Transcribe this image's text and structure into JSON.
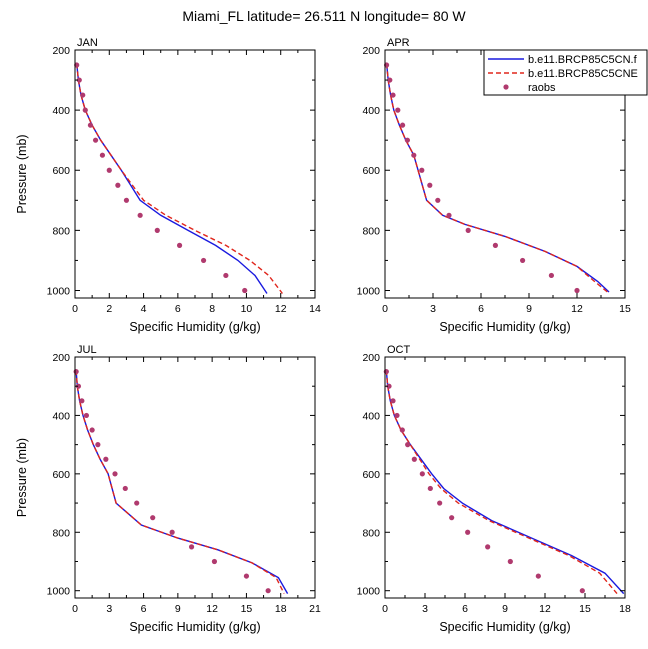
{
  "figure": {
    "title": "Miami_FL  latitude= 26.511 N longitude= 80 W"
  },
  "colors": {
    "series1": "#1a1adf",
    "series2": "#e0261c",
    "obs": "#b03a6e"
  },
  "chart_data": [
    {
      "type": "line",
      "panel": "JAN",
      "xlabel": "Specific Humidity (g/kg)",
      "ylabel": "Pressure (mb)",
      "xlim": [
        0,
        14
      ],
      "xticks": [
        0,
        2,
        4,
        6,
        8,
        10,
        12,
        14
      ],
      "ylim": [
        200,
        1025
      ],
      "yticks": [
        200,
        400,
        600,
        800,
        1000
      ],
      "y_inverted": true,
      "legend": "top-right",
      "series": [
        {
          "name": "b.e11.BRCP85C5CN.f",
          "style": "solid",
          "x": [
            0.1,
            0.2,
            0.35,
            0.6,
            1.0,
            1.5,
            2.1,
            2.7,
            3.8,
            5.0,
            6.6,
            8.2,
            9.5,
            10.5,
            11.2
          ],
          "y": [
            245,
            300,
            350,
            400,
            450,
            500,
            550,
            600,
            700,
            750,
            800,
            850,
            900,
            950,
            1010
          ]
        },
        {
          "name": "b.e11.BRCP85C5CNE",
          "style": "dashed",
          "x": [
            0.1,
            0.2,
            0.35,
            0.6,
            1.0,
            1.5,
            2.1,
            2.7,
            4.0,
            5.3,
            7.0,
            8.8,
            10.2,
            11.3,
            12.1
          ],
          "y": [
            245,
            300,
            350,
            400,
            450,
            500,
            550,
            600,
            700,
            750,
            800,
            850,
            900,
            950,
            1010
          ]
        },
        {
          "name": "raobs",
          "style": "points",
          "x": [
            0.1,
            0.25,
            0.45,
            0.6,
            0.9,
            1.2,
            1.6,
            2.0,
            2.5,
            3.0,
            3.8,
            4.8,
            6.1,
            7.5,
            8.8,
            9.9
          ],
          "y": [
            250,
            300,
            350,
            400,
            450,
            500,
            550,
            600,
            650,
            700,
            750,
            800,
            850,
            900,
            950,
            1000
          ]
        }
      ]
    },
    {
      "type": "line",
      "panel": "APR",
      "xlabel": "Specific Humidity (g/kg)",
      "ylabel": "Pressure (mb)",
      "xlim": [
        0,
        15
      ],
      "xticks": [
        0,
        3,
        6,
        9,
        12,
        15
      ],
      "ylim": [
        200,
        1025
      ],
      "yticks": [
        200,
        400,
        600,
        800,
        1000
      ],
      "y_inverted": true,
      "legend": "top-right",
      "series": [
        {
          "name": "b.e11.BRCP85C5CN.f",
          "style": "solid",
          "x": [
            0.1,
            0.2,
            0.35,
            0.55,
            0.9,
            1.3,
            1.8,
            2.6,
            3.6,
            5.0,
            7.5,
            10.0,
            12.0,
            13.3,
            14.0
          ],
          "y": [
            245,
            300,
            350,
            400,
            450,
            500,
            550,
            700,
            750,
            780,
            820,
            870,
            920,
            970,
            1005
          ]
        },
        {
          "name": "b.e11.BRCP85C5CNE",
          "style": "dashed",
          "x": [
            0.1,
            0.2,
            0.35,
            0.55,
            0.9,
            1.3,
            1.8,
            2.6,
            3.6,
            5.0,
            7.5,
            10.0,
            12.0,
            13.1,
            13.9
          ],
          "y": [
            245,
            300,
            350,
            400,
            450,
            500,
            550,
            700,
            750,
            780,
            820,
            870,
            920,
            970,
            1005
          ]
        },
        {
          "name": "raobs",
          "style": "points",
          "x": [
            0.1,
            0.3,
            0.5,
            0.8,
            1.1,
            1.4,
            1.8,
            2.3,
            2.8,
            3.3,
            4.0,
            5.2,
            6.9,
            8.6,
            10.4,
            12.0
          ],
          "y": [
            250,
            300,
            350,
            400,
            450,
            500,
            550,
            600,
            650,
            700,
            750,
            800,
            850,
            900,
            950,
            1000
          ]
        }
      ]
    },
    {
      "type": "line",
      "panel": "JUL",
      "xlabel": "Specific Humidity (g/kg)",
      "ylabel": "Pressure (mb)",
      "xlim": [
        0,
        21
      ],
      "xticks": [
        0,
        3,
        6,
        9,
        12,
        15,
        18,
        21
      ],
      "ylim": [
        200,
        1025
      ],
      "yticks": [
        200,
        400,
        600,
        800,
        1000
      ],
      "y_inverted": true,
      "legend": "none",
      "series": [
        {
          "name": "b.e11.BRCP85C5CN.f",
          "style": "solid",
          "x": [
            0.1,
            0.2,
            0.4,
            0.7,
            1.1,
            1.6,
            2.2,
            2.9,
            3.6,
            5.8,
            9.0,
            12.5,
            15.5,
            17.8,
            18.6
          ],
          "y": [
            245,
            300,
            350,
            400,
            450,
            500,
            550,
            600,
            700,
            775,
            820,
            860,
            905,
            955,
            1010
          ]
        },
        {
          "name": "b.e11.BRCP85C5CNE",
          "style": "dashed",
          "x": [
            0.1,
            0.2,
            0.4,
            0.7,
            1.1,
            1.6,
            2.2,
            2.9,
            3.6,
            5.8,
            9.0,
            12.5,
            15.5,
            17.6,
            18.3
          ],
          "y": [
            245,
            300,
            350,
            400,
            450,
            500,
            550,
            600,
            700,
            775,
            820,
            860,
            905,
            955,
            1010
          ]
        },
        {
          "name": "raobs",
          "style": "points",
          "x": [
            0.1,
            0.3,
            0.6,
            1.0,
            1.5,
            2.0,
            2.7,
            3.5,
            4.4,
            5.4,
            6.8,
            8.5,
            10.2,
            12.2,
            15.0,
            16.9
          ],
          "y": [
            250,
            300,
            350,
            400,
            450,
            500,
            550,
            600,
            650,
            700,
            750,
            800,
            850,
            900,
            950,
            1000
          ]
        }
      ]
    },
    {
      "type": "line",
      "panel": "OCT",
      "xlabel": "Specific Humidity (g/kg)",
      "ylabel": "Pressure (mb)",
      "xlim": [
        0,
        18
      ],
      "xticks": [
        0,
        3,
        6,
        9,
        12,
        15,
        18
      ],
      "ylim": [
        200,
        1025
      ],
      "yticks": [
        200,
        400,
        600,
        800,
        1000
      ],
      "y_inverted": true,
      "legend": "none",
      "series": [
        {
          "name": "b.e11.BRCP85C5CN.f",
          "style": "solid",
          "x": [
            0.1,
            0.2,
            0.4,
            0.7,
            1.2,
            1.9,
            2.7,
            3.5,
            4.4,
            5.8,
            8.0,
            11.0,
            14.0,
            16.5,
            17.9
          ],
          "y": [
            245,
            300,
            350,
            400,
            450,
            500,
            550,
            600,
            650,
            700,
            760,
            820,
            880,
            940,
            1010
          ]
        },
        {
          "name": "b.e11.BRCP85C5CNE",
          "style": "dashed",
          "x": [
            0.1,
            0.2,
            0.4,
            0.7,
            1.2,
            1.9,
            2.6,
            3.3,
            4.2,
            5.5,
            7.8,
            10.8,
            13.8,
            16.1,
            17.4
          ],
          "y": [
            245,
            300,
            350,
            400,
            450,
            500,
            550,
            600,
            650,
            700,
            760,
            820,
            880,
            940,
            1010
          ]
        },
        {
          "name": "raobs",
          "style": "points",
          "x": [
            0.1,
            0.3,
            0.6,
            0.9,
            1.3,
            1.7,
            2.2,
            2.8,
            3.4,
            4.1,
            5.0,
            6.2,
            7.7,
            9.4,
            11.5,
            14.8
          ],
          "y": [
            250,
            300,
            350,
            400,
            450,
            500,
            550,
            600,
            650,
            700,
            750,
            800,
            850,
            900,
            950,
            1000
          ]
        }
      ]
    }
  ]
}
